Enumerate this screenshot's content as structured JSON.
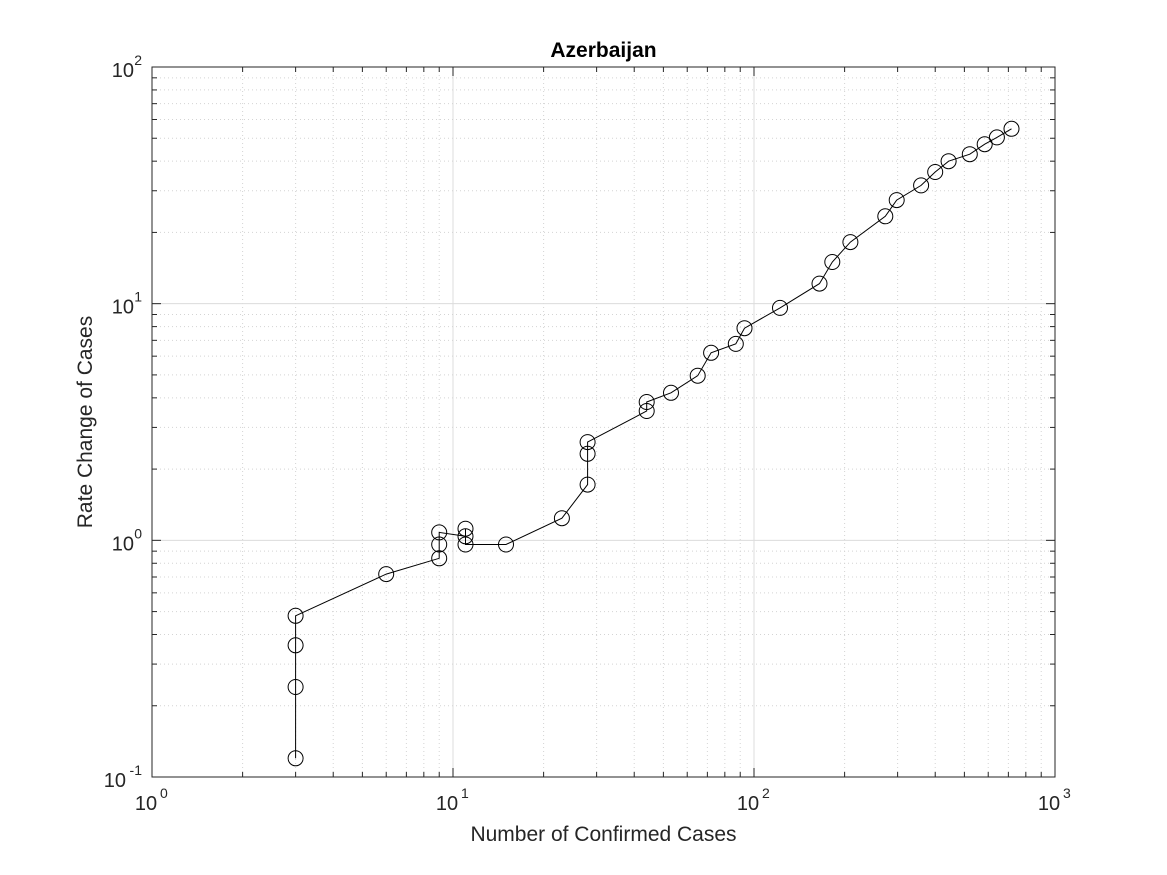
{
  "chart_data": {
    "type": "line",
    "title": "Azerbaijan",
    "xlabel": "Number of Confirmed Cases",
    "ylabel": "Rate Change of Cases",
    "xscale": "log",
    "yscale": "log",
    "xlim": [
      1,
      1000
    ],
    "ylim": [
      0.1,
      100
    ],
    "grid": true,
    "minor_grid": true,
    "marker": "open-circle",
    "line_color": "#000000",
    "x_ticks": [
      {
        "base": "10",
        "exp": "0"
      },
      {
        "base": "10",
        "exp": "1"
      },
      {
        "base": "10",
        "exp": "2"
      },
      {
        "base": "10",
        "exp": "3"
      }
    ],
    "y_ticks": [
      {
        "base": "10",
        "exp": "-1"
      },
      {
        "base": "10",
        "exp": "0"
      },
      {
        "base": "10",
        "exp": "1"
      },
      {
        "base": "10",
        "exp": "2"
      }
    ],
    "points": [
      {
        "x": 3,
        "y": 0.12
      },
      {
        "x": 3,
        "y": 0.24
      },
      {
        "x": 3,
        "y": 0.36
      },
      {
        "x": 3,
        "y": 0.48
      },
      {
        "x": 6,
        "y": 0.72
      },
      {
        "x": 9,
        "y": 0.84
      },
      {
        "x": 9,
        "y": 0.96
      },
      {
        "x": 9,
        "y": 1.08
      },
      {
        "x": 11,
        "y": 1.04
      },
      {
        "x": 11,
        "y": 1.12
      },
      {
        "x": 11,
        "y": 0.96
      },
      {
        "x": 15,
        "y": 0.96
      },
      {
        "x": 23,
        "y": 1.24
      },
      {
        "x": 28,
        "y": 1.72
      },
      {
        "x": 28,
        "y": 2.32
      },
      {
        "x": 28,
        "y": 2.6
      },
      {
        "x": 44,
        "y": 3.52
      },
      {
        "x": 44,
        "y": 3.84
      },
      {
        "x": 53,
        "y": 4.2
      },
      {
        "x": 65,
        "y": 4.96
      },
      {
        "x": 72,
        "y": 6.2
      },
      {
        "x": 87,
        "y": 6.76
      },
      {
        "x": 93,
        "y": 7.88
      },
      {
        "x": 122,
        "y": 9.6
      },
      {
        "x": 165,
        "y": 12.16
      },
      {
        "x": 182,
        "y": 15.0
      },
      {
        "x": 209,
        "y": 18.2
      },
      {
        "x": 273,
        "y": 23.4
      },
      {
        "x": 298,
        "y": 27.4
      },
      {
        "x": 359,
        "y": 31.6
      },
      {
        "x": 400,
        "y": 36.0
      },
      {
        "x": 443,
        "y": 40.0
      },
      {
        "x": 521,
        "y": 42.8
      },
      {
        "x": 584,
        "y": 47.2
      },
      {
        "x": 641,
        "y": 50.4
      },
      {
        "x": 717,
        "y": 54.8
      }
    ]
  }
}
